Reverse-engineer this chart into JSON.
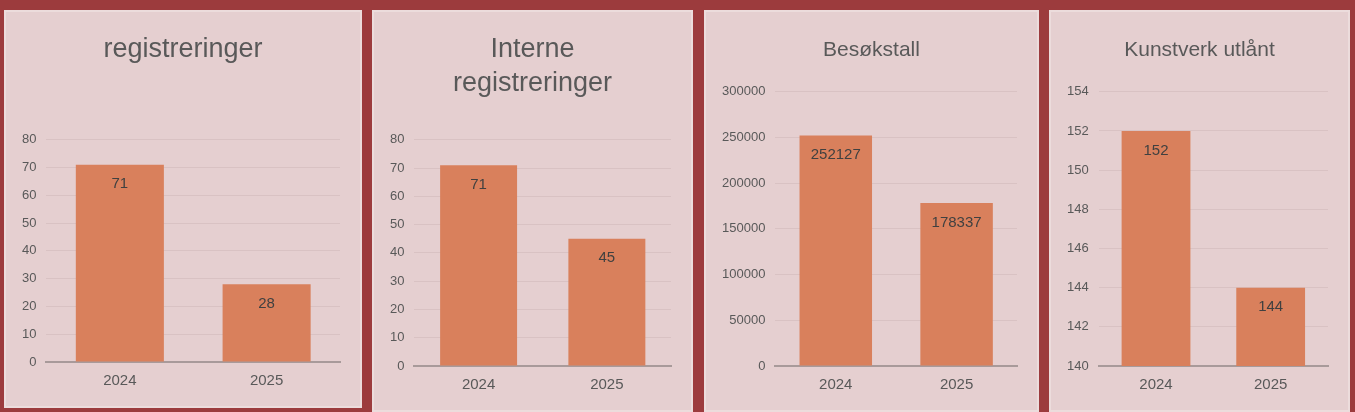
{
  "chart_data": [
    {
      "type": "bar",
      "title": "registreringer",
      "categories": [
        "2024",
        "2025"
      ],
      "values": [
        71,
        28
      ],
      "color": "#d9805c",
      "ylim": [
        0,
        80
      ],
      "yticks": [
        0,
        10,
        20,
        30,
        40,
        50,
        60,
        70,
        80
      ],
      "grid": "y",
      "data_labels": true,
      "legend": false
    },
    {
      "type": "bar",
      "title": "Interne registreringer",
      "categories": [
        "2024",
        "2025"
      ],
      "values": [
        71,
        45
      ],
      "color": "#d9805c",
      "ylim": [
        0,
        80
      ],
      "yticks": [
        0,
        10,
        20,
        30,
        40,
        50,
        60,
        70,
        80
      ],
      "grid": "y",
      "data_labels": true,
      "legend": false
    },
    {
      "type": "bar",
      "title": "Besøkstall",
      "categories": [
        "2024",
        "2025"
      ],
      "values": [
        252127,
        178337
      ],
      "color": "#d9805c",
      "ylim": [
        0,
        300000
      ],
      "yticks": [
        0,
        50000,
        100000,
        150000,
        200000,
        250000,
        300000
      ],
      "grid": "y",
      "data_labels": true,
      "legend": false
    },
    {
      "type": "bar",
      "title": "Kunstverk utlånt",
      "categories": [
        "2024",
        "2025"
      ],
      "values": [
        152,
        144
      ],
      "color": "#d9805c",
      "ylim": [
        140,
        154
      ],
      "yticks": [
        140,
        142,
        144,
        146,
        148,
        150,
        152,
        154
      ],
      "grid": "y",
      "data_labels": true,
      "legend": false
    }
  ]
}
